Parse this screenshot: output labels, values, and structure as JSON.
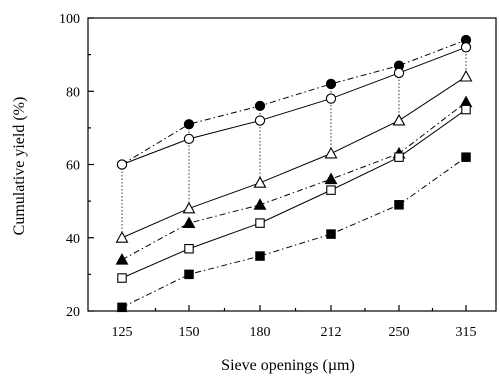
{
  "chart_data": {
    "type": "line",
    "title": "",
    "xlabel": "Sieve openings (µm)",
    "ylabel": "Cumulative yield (%)",
    "categories": [
      "125",
      "150",
      "180",
      "212",
      "250",
      "315"
    ],
    "ylim": [
      20,
      100
    ],
    "yticks": [
      "20",
      "40",
      "60",
      "80",
      "100"
    ],
    "grid": false,
    "legend": "none",
    "series": [
      {
        "marker": "filled-circle",
        "line": "dash-dot",
        "values": [
          60,
          71,
          76,
          82,
          87,
          94
        ]
      },
      {
        "marker": "open-circle",
        "line": "solid",
        "values": [
          60,
          67,
          72,
          78,
          85,
          92
        ]
      },
      {
        "marker": "open-triangle",
        "line": "solid",
        "values": [
          40,
          48,
          55,
          63,
          72,
          84
        ]
      },
      {
        "marker": "filled-triangle",
        "line": "dash-dot",
        "values": [
          34,
          44,
          49,
          56,
          63,
          77
        ]
      },
      {
        "marker": "open-square",
        "line": "solid",
        "values": [
          29,
          37,
          44,
          53,
          62,
          75
        ]
      },
      {
        "marker": "filled-square",
        "line": "dash-dot",
        "values": [
          21,
          30,
          35,
          41,
          49,
          62
        ]
      }
    ],
    "connectors": [
      {
        "from_series": 0,
        "to_series": 2,
        "line": "dotted"
      }
    ]
  }
}
